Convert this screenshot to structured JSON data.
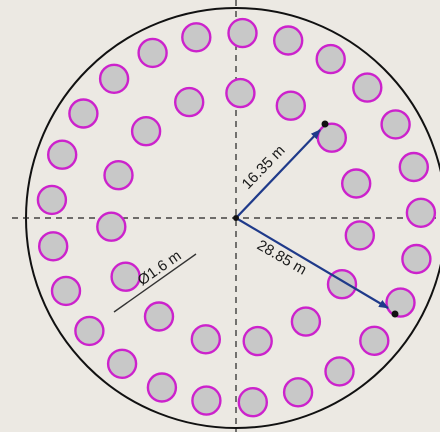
{
  "diagram": {
    "labels": {
      "inner_radius": "16.35 m",
      "outer_radius": "28.85 m",
      "pile_diameter": "Ø1.6 m"
    },
    "colors": {
      "background": "#ece9e3",
      "pile_fill": "#c8c8c8",
      "pile_stroke": "#cc22cc",
      "boundary": "#111111",
      "arrow": "#1f3a8a",
      "centerline": "#222222"
    },
    "pile_rings": [
      {
        "name": "inner",
        "count": 15
      },
      {
        "name": "outer",
        "count": 25
      }
    ]
  }
}
